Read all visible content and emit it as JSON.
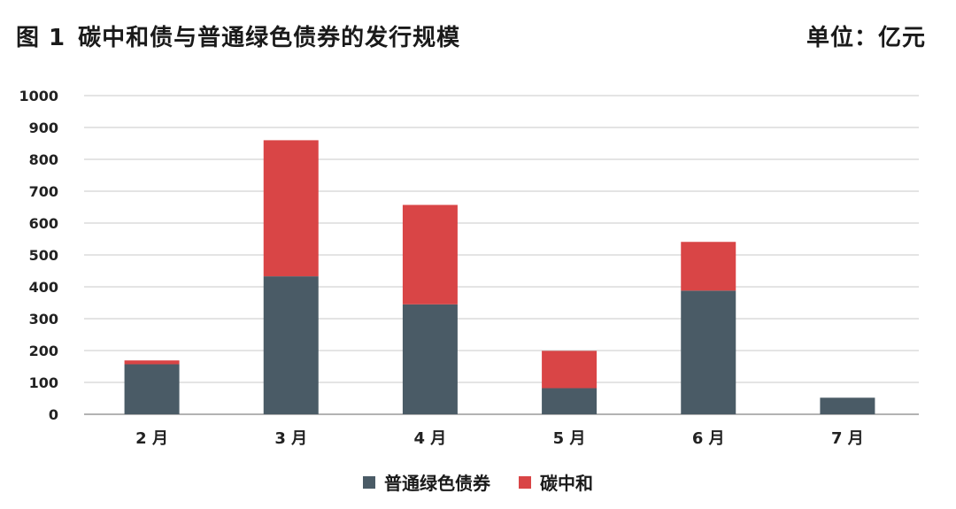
{
  "header": {
    "figure_label": "图 1",
    "title": "碳中和债与普通绿色债券的发行规模",
    "unit": "单位：亿元"
  },
  "chart_data": {
    "type": "bar",
    "stacked": true,
    "categories": [
      "2 月",
      "3 月",
      "4 月",
      "5 月",
      "6 月",
      "7 月"
    ],
    "series": [
      {
        "name": "普通绿色债券",
        "color": "#4a5b66",
        "values": [
          157,
          433,
          345,
          82,
          388,
          52
        ]
      },
      {
        "name": "碳中和",
        "color": "#d94546",
        "values": [
          12,
          427,
          312,
          117,
          153,
          0
        ]
      }
    ],
    "ylim": [
      0,
      1000
    ],
    "yticks": [
      0,
      100,
      200,
      300,
      400,
      500,
      600,
      700,
      800,
      900,
      1000
    ],
    "grid": true,
    "legend_position": "bottom"
  }
}
